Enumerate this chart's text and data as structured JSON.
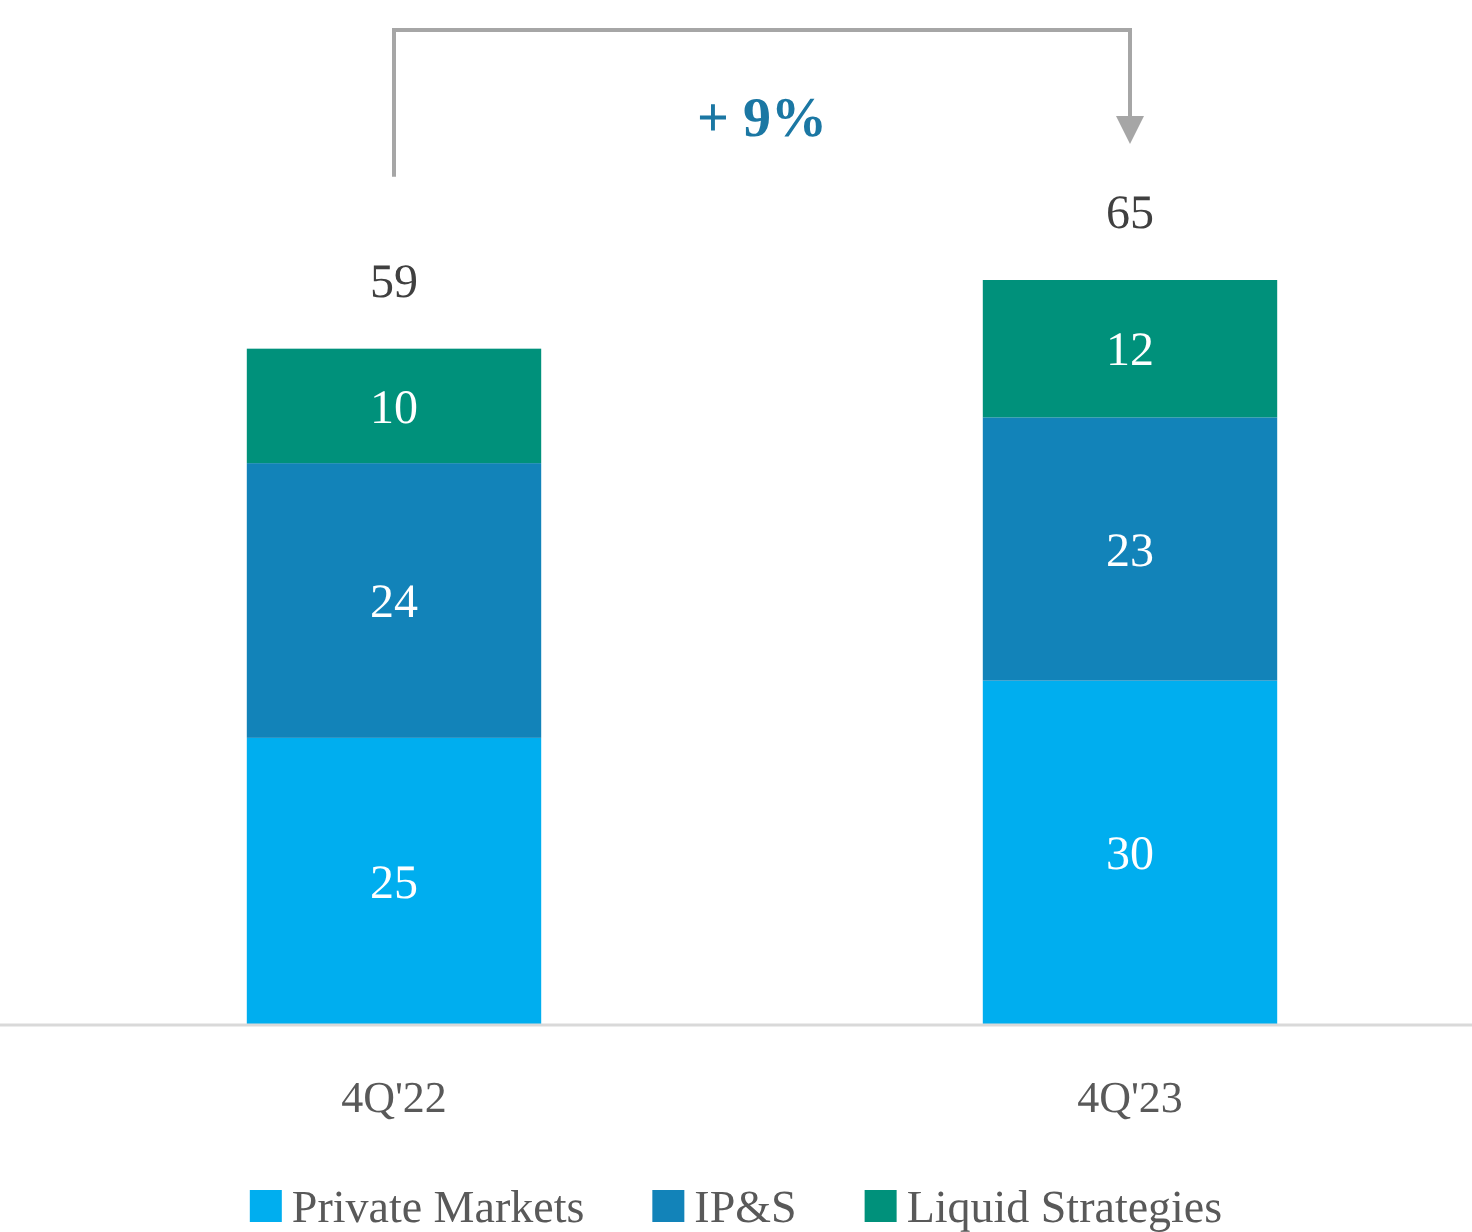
{
  "chart_data": {
    "type": "bar",
    "categories": [
      "4Q'22",
      "4Q'23"
    ],
    "series": [
      {
        "name": "Private Markets",
        "color": "#00aeef",
        "values": [
          25,
          30
        ]
      },
      {
        "name": "IP&S",
        "color": "#1283b9",
        "values": [
          24,
          23
        ]
      },
      {
        "name": "Liquid Strategies",
        "color": "#00917b",
        "values": [
          10,
          12
        ]
      }
    ],
    "stacked": true,
    "data_labels": true,
    "totals": [
      "59",
      "65"
    ],
    "annotations": [
      "+ 9%"
    ],
    "legend": "bottom",
    "tick_labels": "x"
  }
}
